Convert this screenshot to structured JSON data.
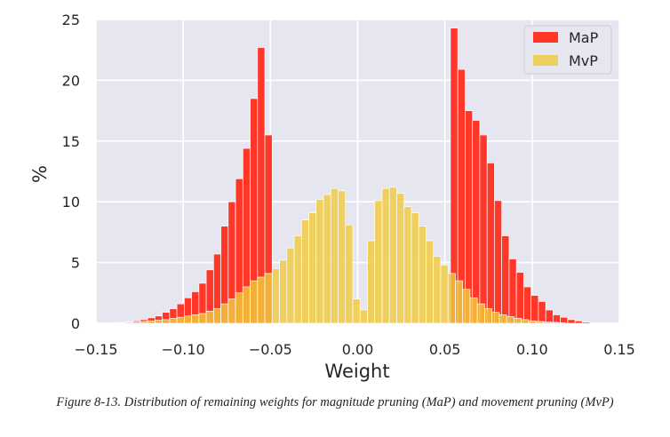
{
  "chart_data": {
    "type": "bar",
    "xlabel": "Weight",
    "ylabel": "%",
    "xlim": [
      -0.15,
      0.15
    ],
    "ylim": [
      0,
      25
    ],
    "xticks": [
      "−0.15",
      "−0.10",
      "−0.05",
      "0.00",
      "0.05",
      "0.10",
      "0.15"
    ],
    "yticks": [
      "0",
      "5",
      "10",
      "15",
      "20",
      "25"
    ],
    "grid": true,
    "legend": "top-right",
    "bin_width": 0.0042,
    "series": [
      {
        "name": "MaP",
        "color": "#ff2d1e",
        "bins": [
          {
            "x": -0.1414,
            "y": 0.05
          },
          {
            "x": -0.1372,
            "y": 0.08
          },
          {
            "x": -0.133,
            "y": 0.12
          },
          {
            "x": -0.1288,
            "y": 0.2
          },
          {
            "x": -0.1246,
            "y": 0.3
          },
          {
            "x": -0.1204,
            "y": 0.45
          },
          {
            "x": -0.1162,
            "y": 0.6
          },
          {
            "x": -0.112,
            "y": 0.9
          },
          {
            "x": -0.1078,
            "y": 1.2
          },
          {
            "x": -0.1036,
            "y": 1.6
          },
          {
            "x": -0.0994,
            "y": 2.1
          },
          {
            "x": -0.0952,
            "y": 2.6
          },
          {
            "x": -0.091,
            "y": 3.3
          },
          {
            "x": -0.0868,
            "y": 4.4
          },
          {
            "x": -0.0826,
            "y": 5.7
          },
          {
            "x": -0.0784,
            "y": 8.0
          },
          {
            "x": -0.0742,
            "y": 10.0
          },
          {
            "x": -0.07,
            "y": 11.9
          },
          {
            "x": -0.0658,
            "y": 14.4
          },
          {
            "x": -0.0616,
            "y": 18.5
          },
          {
            "x": -0.0574,
            "y": 22.7
          },
          {
            "x": -0.0532,
            "y": 15.5
          },
          {
            "x": 0.0532,
            "y": 24.3
          },
          {
            "x": 0.0574,
            "y": 20.9
          },
          {
            "x": 0.0616,
            "y": 17.5
          },
          {
            "x": 0.0658,
            "y": 16.7
          },
          {
            "x": 0.07,
            "y": 15.5
          },
          {
            "x": 0.0742,
            "y": 13.2
          },
          {
            "x": 0.0784,
            "y": 10.1
          },
          {
            "x": 0.0826,
            "y": 7.2
          },
          {
            "x": 0.0868,
            "y": 5.3
          },
          {
            "x": 0.091,
            "y": 4.2
          },
          {
            "x": 0.0952,
            "y": 3.0
          },
          {
            "x": 0.0994,
            "y": 2.3
          },
          {
            "x": 0.1036,
            "y": 1.8
          },
          {
            "x": 0.1078,
            "y": 1.1
          },
          {
            "x": 0.112,
            "y": 0.7
          },
          {
            "x": 0.1162,
            "y": 0.5
          },
          {
            "x": 0.1204,
            "y": 0.3
          },
          {
            "x": 0.1246,
            "y": 0.2
          },
          {
            "x": 0.1288,
            "y": 0.1
          },
          {
            "x": 0.133,
            "y": 0.05
          }
        ]
      },
      {
        "name": "MvP",
        "color": "#f0c93c",
        "bins": [
          {
            "x": -0.1414,
            "y": 0.02
          },
          {
            "x": -0.1372,
            "y": 0.05
          },
          {
            "x": -0.133,
            "y": 0.08
          },
          {
            "x": -0.1288,
            "y": 0.1
          },
          {
            "x": -0.1246,
            "y": 0.15
          },
          {
            "x": -0.1204,
            "y": 0.2
          },
          {
            "x": -0.1162,
            "y": 0.25
          },
          {
            "x": -0.112,
            "y": 0.3
          },
          {
            "x": -0.1078,
            "y": 0.4
          },
          {
            "x": -0.1036,
            "y": 0.5
          },
          {
            "x": -0.0994,
            "y": 0.6
          },
          {
            "x": -0.0952,
            "y": 0.7
          },
          {
            "x": -0.091,
            "y": 0.8
          },
          {
            "x": -0.0868,
            "y": 1.0
          },
          {
            "x": -0.0826,
            "y": 1.2
          },
          {
            "x": -0.0784,
            "y": 1.6
          },
          {
            "x": -0.0742,
            "y": 2.0
          },
          {
            "x": -0.07,
            "y": 2.5
          },
          {
            "x": -0.0658,
            "y": 3.0
          },
          {
            "x": -0.0616,
            "y": 3.5
          },
          {
            "x": -0.0574,
            "y": 3.8
          },
          {
            "x": -0.0532,
            "y": 4.1
          },
          {
            "x": -0.049,
            "y": 4.5
          },
          {
            "x": -0.0448,
            "y": 5.2
          },
          {
            "x": -0.0406,
            "y": 6.2
          },
          {
            "x": -0.0364,
            "y": 7.2
          },
          {
            "x": -0.0322,
            "y": 8.5
          },
          {
            "x": -0.028,
            "y": 9.1
          },
          {
            "x": -0.0238,
            "y": 10.2
          },
          {
            "x": -0.0196,
            "y": 10.6
          },
          {
            "x": -0.0154,
            "y": 11.1
          },
          {
            "x": -0.0112,
            "y": 10.9
          },
          {
            "x": -0.007,
            "y": 8.1
          },
          {
            "x": -0.0028,
            "y": 2.0
          },
          {
            "x": 0.0014,
            "y": 1.1
          },
          {
            "x": 0.0056,
            "y": 6.8
          },
          {
            "x": 0.0098,
            "y": 10.1
          },
          {
            "x": 0.014,
            "y": 11.1
          },
          {
            "x": 0.0182,
            "y": 11.2
          },
          {
            "x": 0.0224,
            "y": 10.7
          },
          {
            "x": 0.0266,
            "y": 9.6
          },
          {
            "x": 0.0308,
            "y": 9.1
          },
          {
            "x": 0.035,
            "y": 8.0
          },
          {
            "x": 0.0392,
            "y": 6.8
          },
          {
            "x": 0.0434,
            "y": 5.5
          },
          {
            "x": 0.0476,
            "y": 4.8
          },
          {
            "x": 0.0518,
            "y": 4.1
          },
          {
            "x": 0.056,
            "y": 3.5
          },
          {
            "x": 0.0602,
            "y": 2.8
          },
          {
            "x": 0.0644,
            "y": 2.1
          },
          {
            "x": 0.0686,
            "y": 1.6
          },
          {
            "x": 0.0728,
            "y": 1.2
          },
          {
            "x": 0.077,
            "y": 0.9
          },
          {
            "x": 0.0812,
            "y": 0.7
          },
          {
            "x": 0.0854,
            "y": 0.55
          },
          {
            "x": 0.0896,
            "y": 0.4
          },
          {
            "x": 0.0938,
            "y": 0.3
          },
          {
            "x": 0.098,
            "y": 0.2
          },
          {
            "x": 0.1022,
            "y": 0.15
          },
          {
            "x": 0.1064,
            "y": 0.1
          },
          {
            "x": 0.1106,
            "y": 0.08
          },
          {
            "x": 0.1148,
            "y": 0.05
          }
        ]
      }
    ]
  },
  "caption": {
    "text": "Figure 8-13. Distribution of remaining weights for magnitude pruning (MaP) and movement pruning (MvP)"
  }
}
